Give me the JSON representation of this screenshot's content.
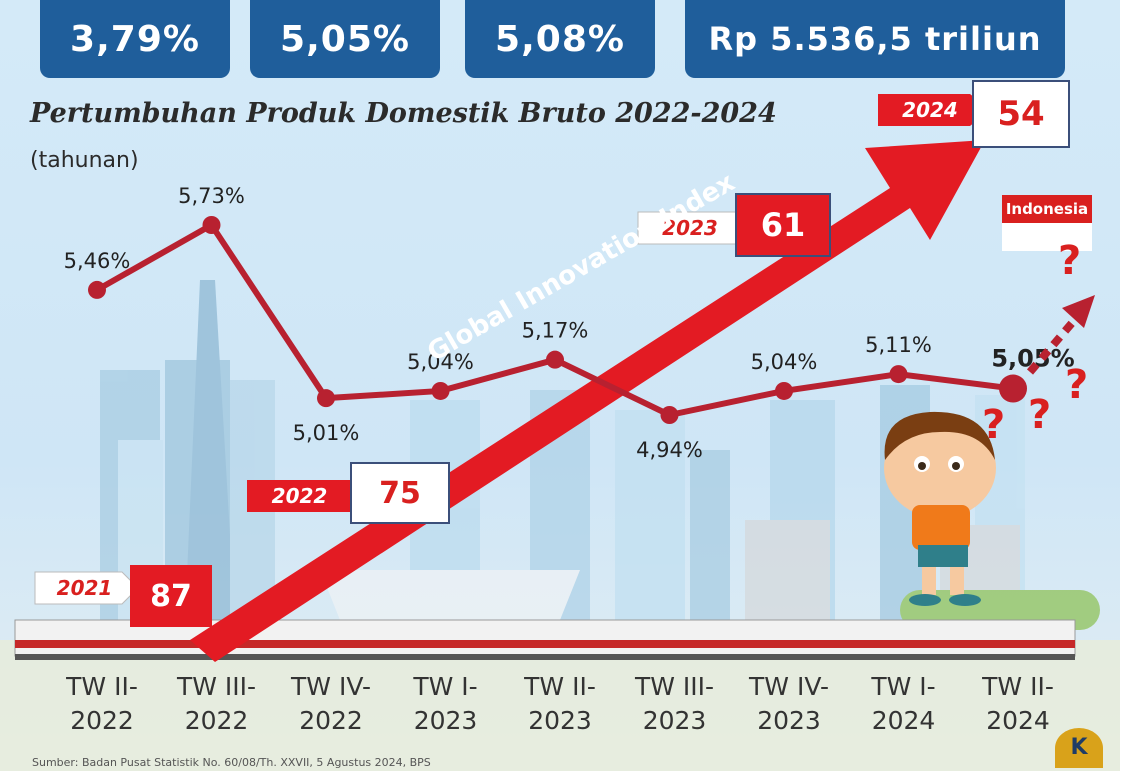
{
  "stats": {
    "box1": "3,79%",
    "box2": "5,05%",
    "box3": "5,08%",
    "box4": "Rp 5.536,5 triliun"
  },
  "chart_data": {
    "type": "line",
    "title": "Pertumbuhan Produk Domestik Bruto 2022-2024",
    "subtitle": "(tahunan)",
    "categories": [
      "TW II-\n2022",
      "TW III-\n2022",
      "TW IV-\n2022",
      "TW I-\n2023",
      "TW II-\n2023",
      "TW III-\n2023",
      "TW IV-\n2023",
      "TW I-\n2024",
      "TW II-\n2024"
    ],
    "category_lines": [
      [
        "TW II-",
        "2022"
      ],
      [
        "TW III-",
        "2022"
      ],
      [
        "TW IV-",
        "2022"
      ],
      [
        "TW I-",
        "2023"
      ],
      [
        "TW II-",
        "2023"
      ],
      [
        "TW III-",
        "2023"
      ],
      [
        "TW IV-",
        "2023"
      ],
      [
        "TW I-",
        "2024"
      ],
      [
        "TW II-",
        "2024"
      ]
    ],
    "values": [
      5.46,
      5.73,
      5.01,
      5.04,
      5.17,
      4.94,
      5.04,
      5.11,
      5.05
    ],
    "data_labels": [
      "5,46%",
      "5,73%",
      "5,01%",
      "5,04%",
      "5,17%",
      "4,94%",
      "5,04%",
      "5,11%",
      "5,05%"
    ],
    "ylim": [
      4.6,
      6.0
    ],
    "line_color": "#b82130",
    "grid": false
  },
  "gii": {
    "label": "Global Innovation Index",
    "color": "#e31b23",
    "entries": [
      {
        "year": "2021",
        "rank": "87"
      },
      {
        "year": "2022",
        "rank": "75"
      },
      {
        "year": "2023",
        "rank": "61"
      },
      {
        "year": "2024",
        "rank": "54"
      }
    ]
  },
  "flag_label": "Indonesia",
  "question_mark": "?",
  "logo_letter": "K",
  "source_note": "Sumber: Badan Pusat Statistik No. 60/08/Th. XXVII, 5 Agustus 2024, BPS"
}
